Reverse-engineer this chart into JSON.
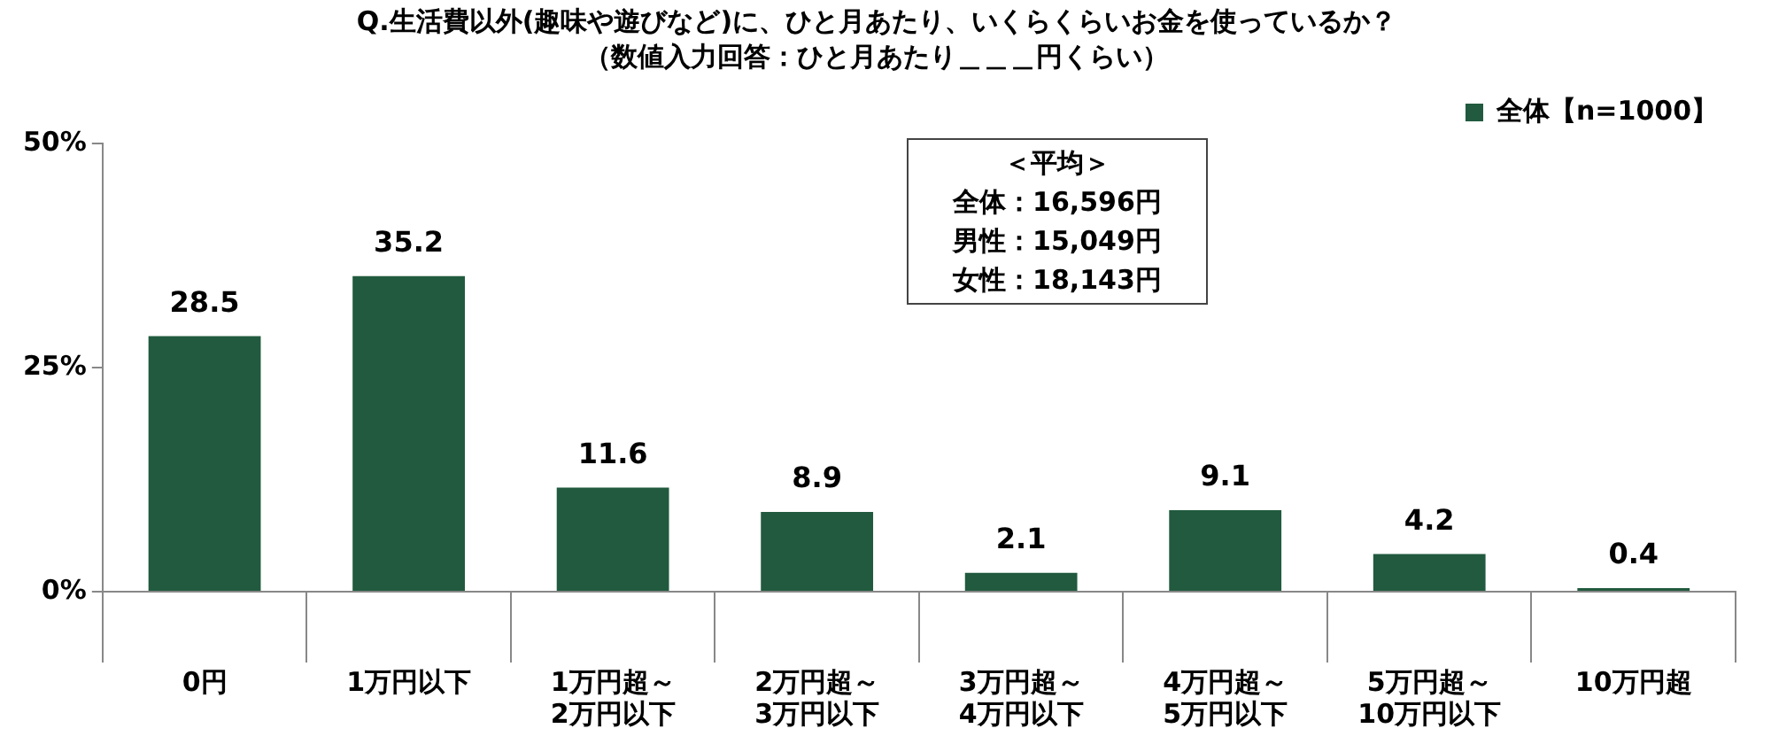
{
  "chart_data": {
    "type": "bar",
    "title": "Q.生活費以外(趣味や遊びなど)に、ひと月あたり、いくらくらいお金を使っているか？",
    "subtitle": "（数値入力回答：ひと月あたり＿＿＿円くらい）",
    "categories": [
      "0円",
      "1万円以下",
      "1万円超～\n2万円以下",
      "2万円超～\n3万円以下",
      "3万円超～\n4万円以下",
      "4万円超～\n5万円以下",
      "5万円超～\n10万円以下",
      "10万円超"
    ],
    "series": [
      {
        "name": "全体【n=1000】",
        "color": "#215a3e",
        "values": [
          28.5,
          35.2,
          11.6,
          8.9,
          2.1,
          9.1,
          4.2,
          0.4
        ]
      }
    ],
    "ylim": [
      0,
      50
    ],
    "yticks": [
      {
        "value": 0,
        "label": "0%"
      },
      {
        "value": 25,
        "label": "25%"
      },
      {
        "value": 50,
        "label": "50%"
      }
    ],
    "grid": false,
    "legend": "top right",
    "data_labels": true,
    "annotations": [
      "＜平均＞",
      "全体：16,596円",
      "男性：15,049円",
      "女性：18,143円"
    ]
  }
}
